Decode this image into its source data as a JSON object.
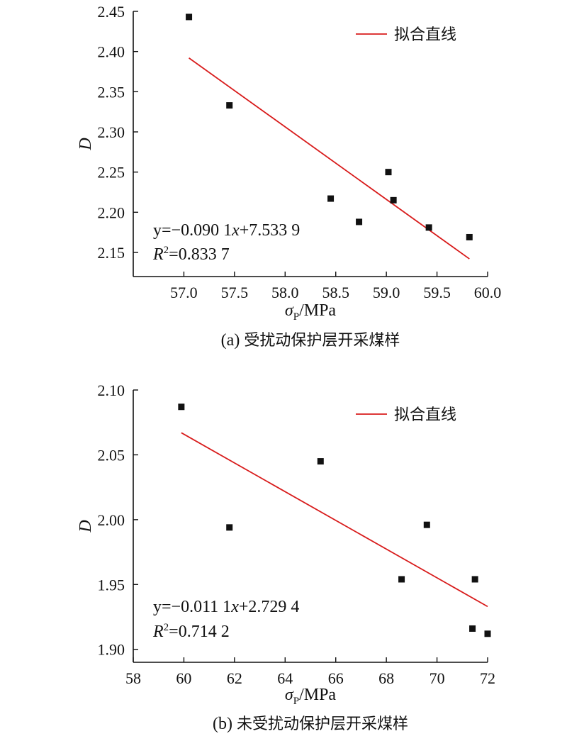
{
  "chart_data": [
    {
      "type": "scatter",
      "panel_label": "(a)",
      "caption": "受扰动保护层开采煤样",
      "xlabel": "σ",
      "xlabel_sub": "P",
      "xlabel_unit": "/MPa",
      "ylabel": "D",
      "xlim": [
        56.5,
        60.0
      ],
      "ylim": [
        2.12,
        2.45
      ],
      "xticks": [
        "57.0",
        "57.5",
        "58.0",
        "58.5",
        "59.0",
        "59.5",
        "60.0"
      ],
      "yticks": [
        "2.15",
        "2.20",
        "2.25",
        "2.30",
        "2.35",
        "2.40",
        "2.45"
      ],
      "points": [
        {
          "x": 57.05,
          "y": 2.443
        },
        {
          "x": 57.45,
          "y": 2.333
        },
        {
          "x": 58.45,
          "y": 2.217
        },
        {
          "x": 58.73,
          "y": 2.188
        },
        {
          "x": 59.02,
          "y": 2.25
        },
        {
          "x": 59.07,
          "y": 2.215
        },
        {
          "x": 59.42,
          "y": 2.181
        },
        {
          "x": 59.82,
          "y": 2.169
        }
      ],
      "fit_line": {
        "label": "拟合直线",
        "color": "#d81b1b",
        "x": [
          57.05,
          59.82
        ],
        "y": [
          2.392,
          2.142
        ]
      },
      "equation": {
        "prefix": "y=−0.090 1",
        "var": "x",
        "suffix": "+7.533 9"
      },
      "r2": {
        "symbol": "R",
        "sup": "2",
        "value": "=0.833 7"
      },
      "legend_position": "top-right",
      "grid": false
    },
    {
      "type": "scatter",
      "panel_label": "(b)",
      "caption": "未受扰动保护层开采煤样",
      "xlabel": "σ",
      "xlabel_sub": "P",
      "xlabel_unit": "/MPa",
      "ylabel": "D",
      "xlim": [
        58,
        72
      ],
      "ylim": [
        1.89,
        2.1
      ],
      "xticks": [
        "58",
        "60",
        "62",
        "64",
        "66",
        "68",
        "70",
        "72"
      ],
      "yticks": [
        "1.90",
        "1.95",
        "2.00",
        "2.05",
        "2.10"
      ],
      "points": [
        {
          "x": 59.9,
          "y": 2.087
        },
        {
          "x": 61.8,
          "y": 1.994
        },
        {
          "x": 65.4,
          "y": 2.045
        },
        {
          "x": 68.6,
          "y": 1.954
        },
        {
          "x": 69.6,
          "y": 1.996
        },
        {
          "x": 71.4,
          "y": 1.916
        },
        {
          "x": 71.5,
          "y": 1.954
        },
        {
          "x": 72.0,
          "y": 1.912
        }
      ],
      "fit_line": {
        "label": "拟合直线",
        "color": "#d81b1b",
        "x": [
          59.9,
          72.0
        ],
        "y": [
          2.067,
          1.933
        ]
      },
      "equation": {
        "prefix": "y=−0.011 1",
        "var": "x",
        "suffix": "+2.729 4"
      },
      "r2": {
        "symbol": "R",
        "sup": "2",
        "value": "=0.714 2"
      },
      "legend_position": "top-right",
      "grid": false
    }
  ]
}
